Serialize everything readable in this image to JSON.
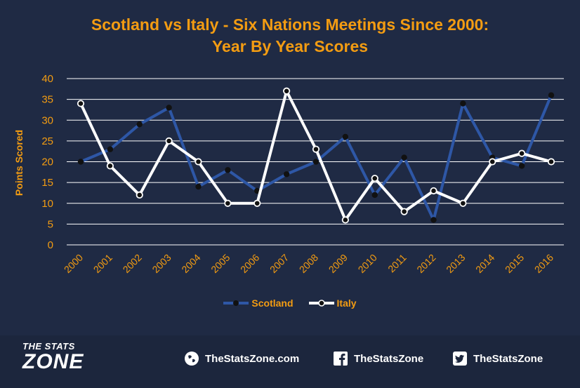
{
  "title_line1": "Scotland vs Italy - Six Nations Meetings Since 2000:",
  "title_line2": "Year By Year Scores",
  "chart_data": {
    "type": "line",
    "ylabel": "Points Scored",
    "ylim": [
      0,
      40
    ],
    "yticks": [
      0,
      5,
      10,
      15,
      20,
      25,
      30,
      35,
      40
    ],
    "categories": [
      "2000",
      "2001",
      "2002",
      "2003",
      "2004",
      "2005",
      "2006",
      "2007",
      "2008",
      "2009",
      "2010",
      "2011",
      "2012",
      "2013",
      "2014",
      "2015",
      "2016"
    ],
    "series": [
      {
        "name": "Scotland",
        "color": "#2e57a6",
        "marker": "#111111",
        "values": [
          20,
          23,
          29,
          33,
          14,
          18,
          13,
          17,
          20,
          26,
          12,
          21,
          6,
          34,
          21,
          19,
          36
        ]
      },
      {
        "name": "Italy",
        "color": "#ffffff",
        "marker": "#111111",
        "values": [
          34,
          19,
          12,
          25,
          20,
          10,
          10,
          37,
          23,
          6,
          16,
          8,
          13,
          10,
          20,
          22,
          20
        ]
      }
    ],
    "grid": true,
    "legend_position": "bottom",
    "axis_text_color": "#f39c12"
  },
  "footer": {
    "logo_line1": "THE STATS",
    "logo_line2": "ZONE",
    "website": "TheStatsZone.com",
    "facebook": "TheStatsZone",
    "twitter": "TheStatsZone",
    "icons": [
      "globe-icon",
      "facebook-icon",
      "twitter-icon"
    ]
  }
}
